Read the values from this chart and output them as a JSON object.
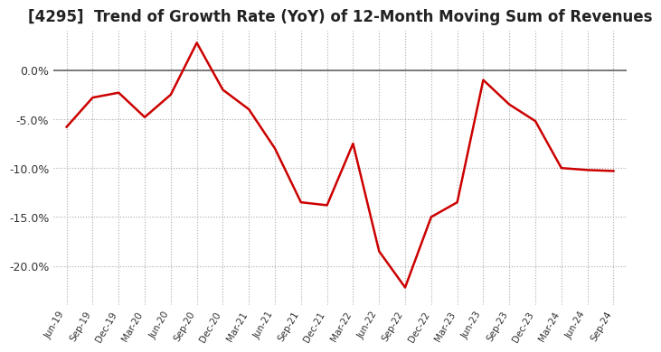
{
  "title": "[4295]  Trend of Growth Rate (YoY) of 12-Month Moving Sum of Revenues",
  "title_fontsize": 12,
  "line_color": "#cc0000",
  "background_color": "#ffffff",
  "grid_color": "#aaaaaa",
  "zero_line_color": "#666666",
  "x_labels": [
    "Jun-19",
    "Sep-19",
    "Dec-19",
    "Mar-20",
    "Jun-20",
    "Sep-20",
    "Dec-20",
    "Mar-21",
    "Jun-21",
    "Sep-21",
    "Dec-21",
    "Mar-22",
    "Jun-22",
    "Sep-22",
    "Dec-22",
    "Mar-23",
    "Jun-23",
    "Sep-23",
    "Dec-23",
    "Mar-24",
    "Jun-24",
    "Sep-24"
  ],
  "y_values": [
    -5.8,
    -2.8,
    -2.3,
    -4.8,
    -2.5,
    2.8,
    -2.0,
    -4.0,
    -8.0,
    -13.5,
    -13.8,
    -7.5,
    -18.5,
    -22.2,
    -15.0,
    -13.5,
    -1.0,
    -3.5,
    -5.2,
    -10.0,
    -10.2,
    -10.3
  ],
  "ylim": [
    -24,
    4
  ],
  "yticks": [
    0.0,
    -5.0,
    -10.0,
    -15.0,
    -20.0
  ]
}
